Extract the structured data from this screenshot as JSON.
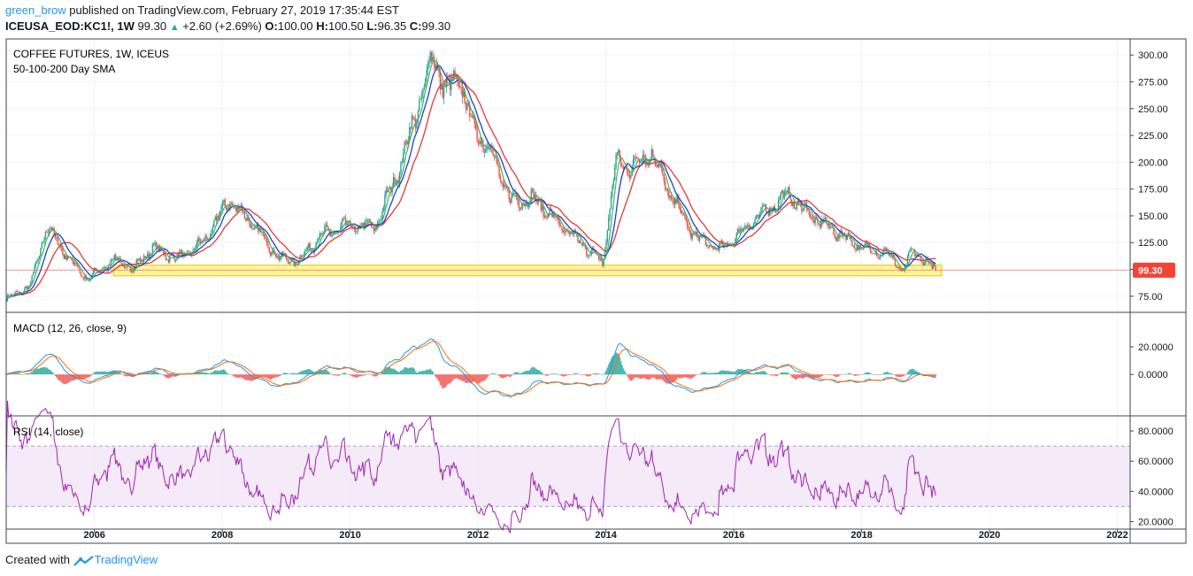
{
  "header": {
    "user": "green_brow",
    "published": " published on TradingView.com, February 27, 2019 17:35:44 EST",
    "symbol": "ICEUSA_EOD:KC1!, 1W",
    "last": " 99.30 ",
    "arrow": "▲",
    "change": " +2.60 (+2.69%) ",
    "o_label": "O:",
    "o_value": "100.00",
    "h_label": " H:",
    "h_value": "100.50",
    "l_label": " L:",
    "l_value": "96.35",
    "c_label": " C:",
    "c_value": "99.30"
  },
  "footer": {
    "created": "Created with ",
    "brand": "TradingView"
  },
  "colors": {
    "up": "#26a69a",
    "down": "#ef5350",
    "sma50": "#4caf50",
    "sma100": "#1e40d0",
    "sma200": "#e53935",
    "macd": "#2196f3",
    "signal": "#ff6d00",
    "rsi": "#9c27b0",
    "rsi_band": "#f3e5f5",
    "highlight": "#fff176",
    "price_tag": "#f44336"
  },
  "chart_data": [
    {
      "type": "candlestick",
      "title": "COFFEE FUTURES, 1W, ICEUS",
      "subtitle": "50-100-200 Day SMA",
      "ylim": [
        60,
        315
      ],
      "y_ticks": [
        "300.00",
        "275.00",
        "250.00",
        "225.00",
        "200.00",
        "175.00",
        "150.00",
        "125.00",
        "100.00",
        "75.00"
      ],
      "y_tick_values": [
        300,
        275,
        250,
        225,
        200,
        175,
        150,
        125,
        100,
        75
      ],
      "last_price": "99.30",
      "highlight_zone": [
        94,
        104
      ],
      "x_ticks": [
        "2006",
        "2008",
        "2010",
        "2012",
        "2014",
        "2016",
        "2018",
        "2020",
        "2022"
      ],
      "x_tick_years": [
        2006,
        2008,
        2010,
        2012,
        2014,
        2016,
        2018,
        2020,
        2022
      ],
      "xlim": [
        2004.62,
        2022.2
      ],
      "price_path": [
        [
          2004.62,
          72
        ],
        [
          2005.0,
          85
        ],
        [
          2005.25,
          140
        ],
        [
          2005.6,
          110
        ],
        [
          2005.9,
          90
        ],
        [
          2006.3,
          110
        ],
        [
          2006.6,
          100
        ],
        [
          2006.9,
          120
        ],
        [
          2007.3,
          110
        ],
        [
          2007.7,
          125
        ],
        [
          2008.1,
          165
        ],
        [
          2008.5,
          140
        ],
        [
          2008.9,
          110
        ],
        [
          2009.2,
          108
        ],
        [
          2009.5,
          130
        ],
        [
          2009.9,
          140
        ],
        [
          2010.4,
          140
        ],
        [
          2010.8,
          200
        ],
        [
          2011.1,
          260
        ],
        [
          2011.3,
          300
        ],
        [
          2011.5,
          265
        ],
        [
          2011.7,
          280
        ],
        [
          2011.9,
          235
        ],
        [
          2012.2,
          210
        ],
        [
          2012.5,
          165
        ],
        [
          2012.9,
          165
        ],
        [
          2013.3,
          140
        ],
        [
          2013.7,
          120
        ],
        [
          2013.95,
          105
        ],
        [
          2014.15,
          200
        ],
        [
          2014.4,
          195
        ],
        [
          2014.7,
          210
        ],
        [
          2015.0,
          170
        ],
        [
          2015.4,
          130
        ],
        [
          2015.8,
          118
        ],
        [
          2016.2,
          140
        ],
        [
          2016.5,
          155
        ],
        [
          2016.85,
          170
        ],
        [
          2017.2,
          150
        ],
        [
          2017.6,
          135
        ],
        [
          2018.0,
          120
        ],
        [
          2018.4,
          115
        ],
        [
          2018.65,
          98
        ],
        [
          2018.8,
          118
        ],
        [
          2018.95,
          110
        ],
        [
          2019.15,
          99.3
        ]
      ],
      "series": [
        {
          "name": "SMA 50",
          "lag": 6
        },
        {
          "name": "SMA 100",
          "lag": 12
        },
        {
          "name": "SMA 200",
          "lag": 24
        }
      ]
    },
    {
      "type": "macd",
      "title": "MACD (12, 26, close, 9)",
      "ylim": [
        -30,
        45
      ],
      "y_ticks": [
        "20.0000",
        "0.0000"
      ],
      "y_tick_values": [
        20,
        0
      ]
    },
    {
      "type": "line",
      "title": "RSI (14, close)",
      "ylim": [
        15,
        90
      ],
      "y_ticks": [
        "80.0000",
        "60.0000",
        "40.0000",
        "20.0000"
      ],
      "y_tick_values": [
        80,
        60,
        40,
        20
      ],
      "band": [
        30,
        70
      ]
    }
  ]
}
